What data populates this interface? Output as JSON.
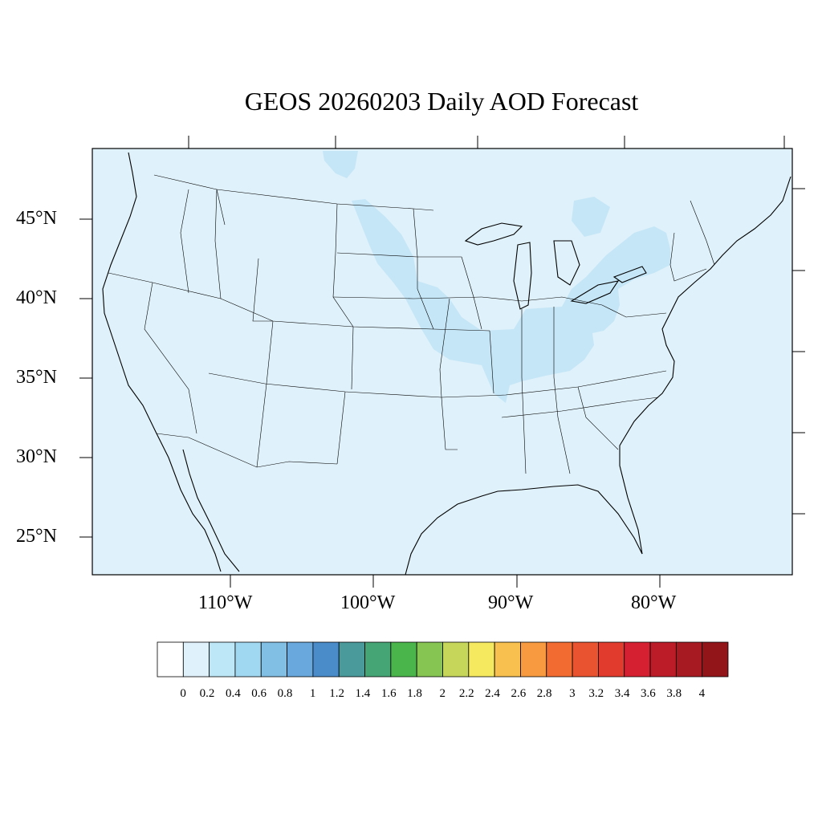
{
  "title": "GEOS 20260203 Daily AOD Forecast",
  "map": {
    "lat_ticks": [
      {
        "value": 45,
        "label": "45°N"
      },
      {
        "value": 40,
        "label": "40°N"
      },
      {
        "value": 35,
        "label": "35°N"
      },
      {
        "value": 30,
        "label": "30°N"
      },
      {
        "value": 25,
        "label": "25°N"
      }
    ],
    "lon_ticks": [
      {
        "value": -110,
        "label": "110°W"
      },
      {
        "value": -100,
        "label": "100°W"
      },
      {
        "value": -90,
        "label": "90°W"
      },
      {
        "value": -80,
        "label": "80°W"
      }
    ],
    "background_level": "0.0-0.2",
    "plume_level": "0.2-0.4"
  },
  "colorbar": {
    "labels": [
      "0",
      "0.2",
      "0.4",
      "0.6",
      "0.8",
      "1",
      "1.2",
      "1.4",
      "1.6",
      "1.8",
      "2",
      "2.2",
      "2.4",
      "2.6",
      "2.8",
      "3",
      "3.2",
      "3.4",
      "3.6",
      "3.8",
      "4"
    ],
    "colors": [
      "#ffffff",
      "#dff1fa",
      "#bde6f7",
      "#a0d8f2",
      "#82bfe4",
      "#68a8dc",
      "#4a8cca",
      "#4a9a9c",
      "#45a574",
      "#4ab54a",
      "#86c552",
      "#c6d65a",
      "#f5e960",
      "#f8c04e",
      "#f79a40",
      "#f26c32",
      "#ea5330",
      "#e03b2c",
      "#d42030",
      "#bb1c28",
      "#a81a22",
      "#921519"
    ]
  }
}
